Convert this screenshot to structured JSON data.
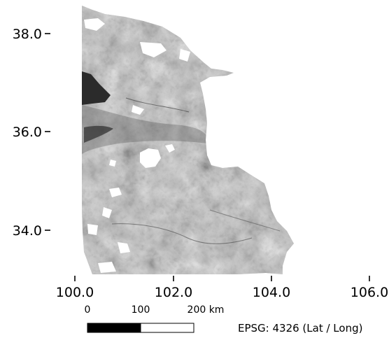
{
  "map": {
    "y_axis": {
      "ticks": [
        "38.0",
        "36.0",
        "34.0"
      ]
    },
    "x_axis": {
      "ticks": [
        "100.0",
        "102.0",
        "104.0",
        "106.0"
      ]
    },
    "scale_bar": {
      "labels": [
        "0",
        "100",
        "200 km"
      ]
    },
    "crs_label": "EPSG: 4326 (Lat / Long)",
    "colors": {
      "terrain_light": "#d8d8d8",
      "terrain_mid": "#a8a8a8",
      "terrain_dark": "#5a5a5a",
      "lake": "#2b2b2b",
      "scale_fill": "#000000"
    }
  }
}
